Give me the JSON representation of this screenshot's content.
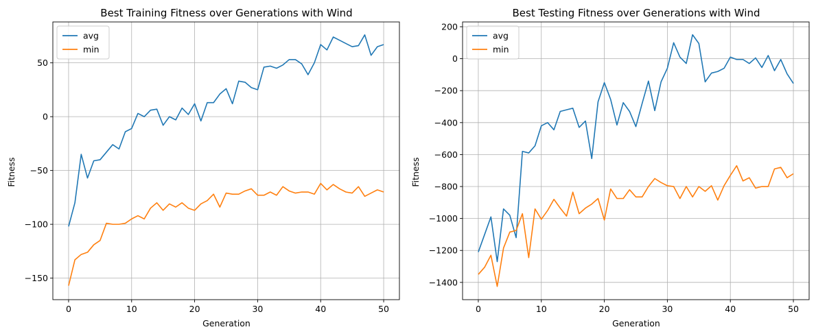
{
  "chart_data": [
    {
      "type": "line",
      "title": "Best Training Fitness over Generations with Wind",
      "xlabel": "Generation",
      "ylabel": "Fitness",
      "xlim": [
        -2.5,
        52.5
      ],
      "ylim": [
        -170,
        88
      ],
      "xticks": [
        0,
        10,
        20,
        30,
        40,
        50
      ],
      "yticks": [
        -150,
        -100,
        -50,
        0,
        50
      ],
      "grid": true,
      "legend": "top-left",
      "x": [
        0,
        1,
        2,
        3,
        4,
        5,
        6,
        7,
        8,
        9,
        10,
        11,
        12,
        13,
        14,
        15,
        16,
        17,
        18,
        19,
        20,
        21,
        22,
        23,
        24,
        25,
        26,
        27,
        28,
        29,
        30,
        31,
        32,
        33,
        34,
        35,
        36,
        37,
        38,
        39,
        40,
        41,
        42,
        43,
        44,
        45,
        46,
        47,
        48,
        49,
        50
      ],
      "series": [
        {
          "name": "avg",
          "color": "#1f77b4",
          "values": [
            -102,
            -80,
            -35,
            -57,
            -41,
            -40,
            -33,
            -26,
            -30,
            -14,
            -11,
            3,
            0,
            6,
            7,
            -8,
            0,
            -3,
            8,
            2,
            12,
            -4,
            13,
            13,
            21,
            26,
            12,
            33,
            32,
            27,
            25,
            46,
            47,
            45,
            48,
            53,
            53,
            49,
            39,
            50,
            67,
            62,
            74,
            71,
            68,
            65,
            66,
            76,
            57,
            65,
            67
          ]
        },
        {
          "name": "min",
          "color": "#ff7f0e",
          "values": [
            -157,
            -133,
            -128,
            -126,
            -119,
            -115,
            -99,
            -100,
            -100,
            -99,
            -95,
            -92,
            -95,
            -85,
            -80,
            -87,
            -81,
            -84,
            -80,
            -85,
            -87,
            -81,
            -78,
            -72,
            -84,
            -71,
            -72,
            -72,
            -69,
            -67,
            -73,
            -73,
            -70,
            -73,
            -65,
            -69,
            -71,
            -70,
            -70,
            -72,
            -62,
            -68,
            -63,
            -67,
            -70,
            -71,
            -65,
            -74,
            -71,
            -68,
            -70
          ]
        }
      ]
    },
    {
      "type": "line",
      "title": "Best Testing Fitness over Generations with Wind",
      "xlabel": "Generation",
      "ylabel": "Fitness",
      "xlim": [
        -2.5,
        52.5
      ],
      "ylim": [
        -1508,
        230
      ],
      "xticks": [
        0,
        10,
        20,
        30,
        40,
        50
      ],
      "yticks": [
        -1400,
        -1200,
        -1000,
        -800,
        -600,
        -400,
        -200,
        0,
        200
      ],
      "grid": true,
      "legend": "top-left",
      "x": [
        0,
        1,
        2,
        3,
        4,
        5,
        6,
        7,
        8,
        9,
        10,
        11,
        12,
        13,
        14,
        15,
        16,
        17,
        18,
        19,
        20,
        21,
        22,
        23,
        24,
        25,
        26,
        27,
        28,
        29,
        30,
        31,
        32,
        33,
        34,
        35,
        36,
        37,
        38,
        39,
        40,
        41,
        42,
        43,
        44,
        45,
        46,
        47,
        48,
        49,
        50
      ],
      "series": [
        {
          "name": "avg",
          "color": "#1f77b4",
          "values": [
            -1210,
            -1100,
            -990,
            -1270,
            -940,
            -980,
            -1120,
            -580,
            -590,
            -545,
            -420,
            -400,
            -445,
            -330,
            -320,
            -310,
            -430,
            -390,
            -625,
            -270,
            -150,
            -255,
            -415,
            -275,
            -330,
            -425,
            -280,
            -140,
            -325,
            -145,
            -60,
            100,
            10,
            -30,
            150,
            95,
            -145,
            -90,
            -80,
            -60,
            10,
            -5,
            -5,
            -30,
            5,
            -55,
            20,
            -75,
            -5,
            -95,
            -155
          ]
        },
        {
          "name": "min",
          "color": "#ff7f0e",
          "values": [
            -1350,
            -1305,
            -1230,
            -1425,
            -1185,
            -1085,
            -1075,
            -970,
            -1245,
            -940,
            -1005,
            -950,
            -880,
            -935,
            -985,
            -835,
            -970,
            -935,
            -910,
            -875,
            -1010,
            -815,
            -875,
            -875,
            -820,
            -865,
            -865,
            -800,
            -750,
            -775,
            -795,
            -800,
            -875,
            -800,
            -865,
            -800,
            -830,
            -795,
            -885,
            -795,
            -730,
            -670,
            -765,
            -745,
            -810,
            -800,
            -800,
            -690,
            -680,
            -745,
            -720
          ]
        }
      ]
    }
  ]
}
